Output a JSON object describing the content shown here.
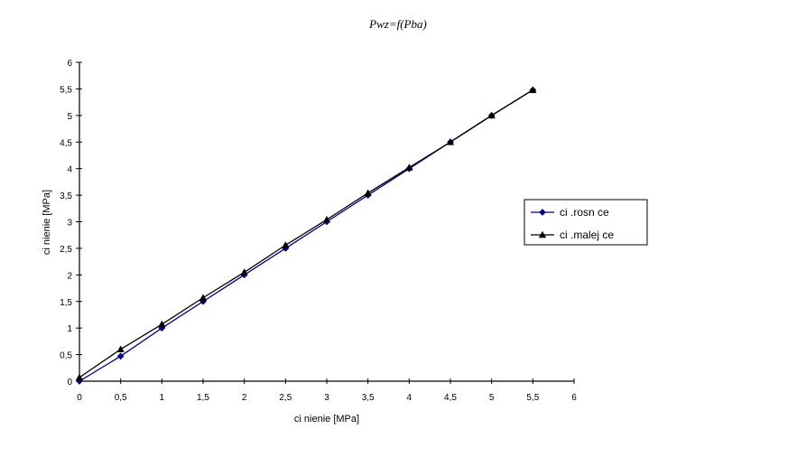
{
  "chart_data": {
    "type": "line",
    "title": "Pwz=f(Pba)",
    "xlabel": "ci  nienie [MPa]",
    "ylabel": "ci  nienie [MPa]",
    "xlim": [
      0,
      6
    ],
    "ylim": [
      0,
      6
    ],
    "x_ticks": [
      "0",
      "0,5",
      "1",
      "1,5",
      "2",
      "2,5",
      "3",
      "3,5",
      "4",
      "4,5",
      "5",
      "5,5",
      "6"
    ],
    "y_ticks": [
      "0",
      "0,5",
      "1",
      "1,5",
      "2",
      "2,5",
      "3",
      "3,5",
      "4",
      "4,5",
      "5",
      "5,5",
      "6"
    ],
    "grid": false,
    "legend_position": "right",
    "series": [
      {
        "name": "ci  .rosn  ce",
        "color": "#00007f",
        "marker": "diamond",
        "x": [
          0,
          0.5,
          1,
          1.5,
          2,
          2.5,
          3,
          3.5,
          4,
          4.5,
          5,
          5.5
        ],
        "y": [
          0,
          0.47,
          1.0,
          1.5,
          2.0,
          2.5,
          3.0,
          3.5,
          4.0,
          4.5,
          5.0,
          5.48
        ]
      },
      {
        "name": "ci  .malej  ce",
        "color": "#000000",
        "marker": "triangle",
        "x": [
          0,
          0.5,
          1,
          1.5,
          2,
          2.5,
          3,
          3.5,
          4,
          4.5,
          5,
          5.5
        ],
        "y": [
          0.07,
          0.6,
          1.07,
          1.57,
          2.05,
          2.56,
          3.04,
          3.54,
          4.02,
          4.5,
          5.0,
          5.48
        ]
      }
    ]
  }
}
